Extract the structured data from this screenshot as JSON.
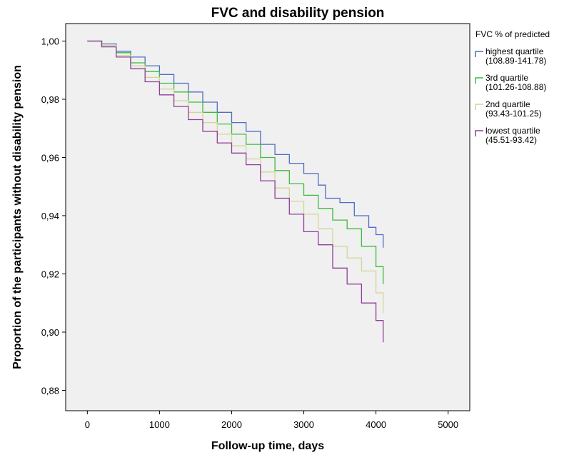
{
  "chart_data": {
    "type": "line",
    "title": "FVC and disability pension",
    "xlabel": "Follow-up time, days",
    "ylabel": "Proportion of the participants without disability pension",
    "xlim": [
      -300,
      5300
    ],
    "ylim": [
      0.873,
      1.006
    ],
    "x_ticks": [
      0,
      1000,
      2000,
      3000,
      4000,
      5000
    ],
    "x_tick_labels": [
      "0",
      "1000",
      "2000",
      "3000",
      "4000",
      "5000"
    ],
    "y_ticks": [
      0.88,
      0.9,
      0.92,
      0.94,
      0.96,
      0.98,
      1.0
    ],
    "y_tick_labels": [
      "0,88",
      "0,90",
      "0,92",
      "0,94",
      "0,96",
      "0,98",
      "1,00"
    ],
    "grid": false,
    "legend": {
      "title": "FVC % of predicted",
      "placement": "right"
    },
    "plot_background": "#f0f0f0",
    "series": [
      {
        "name": "highest quartile",
        "range": "(108.89-141.78)",
        "color": "#4f6cc6",
        "points": [
          [
            0,
            1.0
          ],
          [
            200,
            0.999
          ],
          [
            400,
            0.9965
          ],
          [
            600,
            0.9945
          ],
          [
            800,
            0.9915
          ],
          [
            1000,
            0.9885
          ],
          [
            1200,
            0.9855
          ],
          [
            1400,
            0.9825
          ],
          [
            1600,
            0.979
          ],
          [
            1800,
            0.9755
          ],
          [
            2000,
            0.972
          ],
          [
            2200,
            0.969
          ],
          [
            2400,
            0.9645
          ],
          [
            2600,
            0.961
          ],
          [
            2800,
            0.958
          ],
          [
            3000,
            0.9545
          ],
          [
            3200,
            0.9505
          ],
          [
            3300,
            0.946
          ],
          [
            3500,
            0.9445
          ],
          [
            3700,
            0.94
          ],
          [
            3900,
            0.936
          ],
          [
            4000,
            0.9335
          ],
          [
            4100,
            0.929
          ]
        ]
      },
      {
        "name": "3rd quartile",
        "range": "(101.26-108.88)",
        "color": "#3dbb3d",
        "points": [
          [
            0,
            1.0
          ],
          [
            200,
            0.9985
          ],
          [
            400,
            0.996
          ],
          [
            600,
            0.9925
          ],
          [
            800,
            0.9895
          ],
          [
            1000,
            0.9855
          ],
          [
            1200,
            0.9825
          ],
          [
            1400,
            0.979
          ],
          [
            1600,
            0.9755
          ],
          [
            1800,
            0.9715
          ],
          [
            2000,
            0.968
          ],
          [
            2200,
            0.9645
          ],
          [
            2400,
            0.96
          ],
          [
            2600,
            0.9555
          ],
          [
            2800,
            0.951
          ],
          [
            3000,
            0.947
          ],
          [
            3200,
            0.9425
          ],
          [
            3400,
            0.9385
          ],
          [
            3600,
            0.9355
          ],
          [
            3800,
            0.9295
          ],
          [
            4000,
            0.9225
          ],
          [
            4100,
            0.9165
          ]
        ]
      },
      {
        "name": "2nd quartile",
        "range": "(93.43-101.25)",
        "color": "#d4d49a",
        "points": [
          [
            0,
            1.0
          ],
          [
            200,
            0.9985
          ],
          [
            400,
            0.995
          ],
          [
            600,
            0.9915
          ],
          [
            800,
            0.9875
          ],
          [
            1000,
            0.9835
          ],
          [
            1200,
            0.9795
          ],
          [
            1400,
            0.9755
          ],
          [
            1600,
            0.972
          ],
          [
            1800,
            0.968
          ],
          [
            2000,
            0.964
          ],
          [
            2200,
            0.9595
          ],
          [
            2400,
            0.955
          ],
          [
            2600,
            0.9495
          ],
          [
            2800,
            0.945
          ],
          [
            3000,
            0.9405
          ],
          [
            3200,
            0.9355
          ],
          [
            3400,
            0.9295
          ],
          [
            3600,
            0.9255
          ],
          [
            3800,
            0.921
          ],
          [
            4000,
            0.9135
          ],
          [
            4100,
            0.9065
          ]
        ]
      },
      {
        "name": "lowest quartile",
        "range": "(45.51-93.42)",
        "color": "#8e3f96",
        "points": [
          [
            0,
            1.0
          ],
          [
            200,
            0.998
          ],
          [
            400,
            0.9945
          ],
          [
            600,
            0.9905
          ],
          [
            800,
            0.986
          ],
          [
            1000,
            0.9815
          ],
          [
            1200,
            0.9775
          ],
          [
            1400,
            0.973
          ],
          [
            1600,
            0.969
          ],
          [
            1800,
            0.965
          ],
          [
            2000,
            0.9615
          ],
          [
            2200,
            0.9575
          ],
          [
            2400,
            0.952
          ],
          [
            2600,
            0.946
          ],
          [
            2800,
            0.9405
          ],
          [
            3000,
            0.9345
          ],
          [
            3200,
            0.93
          ],
          [
            3400,
            0.922
          ],
          [
            3600,
            0.9165
          ],
          [
            3800,
            0.91
          ],
          [
            4000,
            0.904
          ],
          [
            4100,
            0.8965
          ]
        ]
      }
    ]
  }
}
